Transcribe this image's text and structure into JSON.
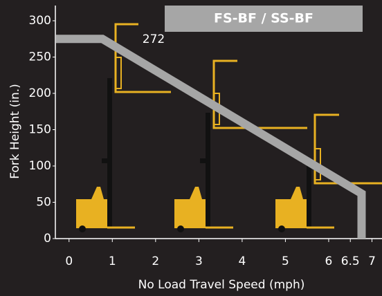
{
  "chart_data": {
    "type": "line",
    "title": "FS-BF / SS-BF",
    "x_label": "No Load Travel Speed (mph)",
    "y_label": "Fork Height (in.)",
    "annotations": [
      {
        "text": "272"
      }
    ],
    "x": [
      -0.3,
      0.77,
      6.76,
      6.76
    ],
    "series": [
      {
        "color": "#a6a6a6",
        "values": [
          275,
          275,
          62,
          0
        ]
      }
    ],
    "xlim": [
      -0.3,
      7.2
    ],
    "ylim": [
      0,
      300
    ],
    "xticks": [
      0,
      1,
      2,
      3,
      4,
      5,
      6,
      6.5,
      7
    ],
    "yticks": [
      0,
      50,
      100,
      150,
      200,
      250,
      300
    ]
  }
}
